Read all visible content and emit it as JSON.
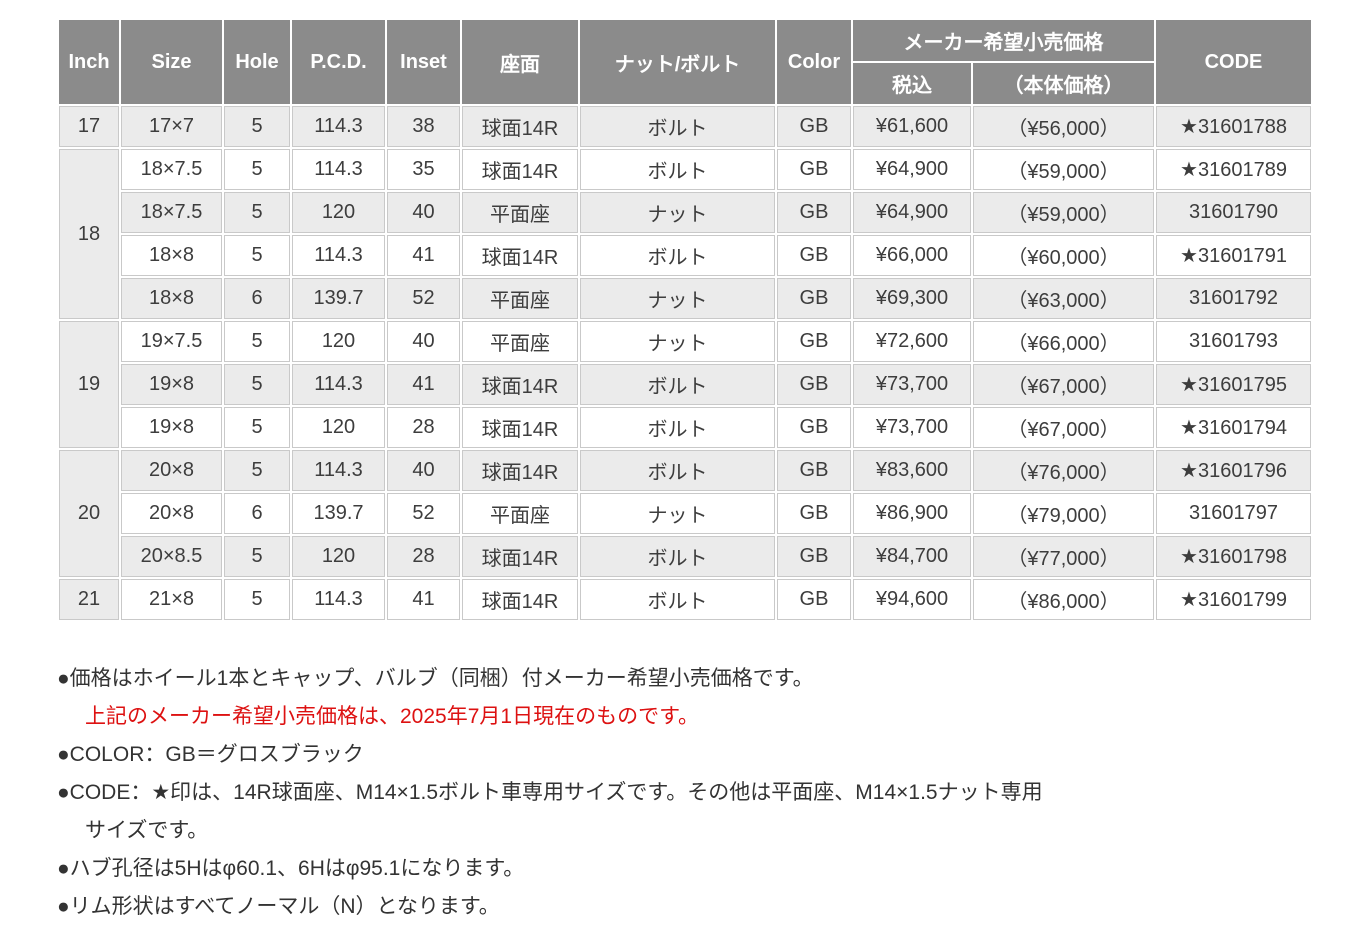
{
  "colors": {
    "header_bg": "#8b8b8b",
    "header_text": "#ffffff",
    "stripe_gray": "#ebebeb",
    "inch_column_bg": "#ebebeb",
    "cell_border": "#c9c9c9",
    "body_text": "#3d3d3d",
    "note_red": "#dd1111"
  },
  "table": {
    "headers": {
      "inch": "Inch",
      "size": "Size",
      "hole": "Hole",
      "pcd": "P.C.D.",
      "inset": "Inset",
      "seat": "座面",
      "nut_bolt": "ナット/ボルト",
      "color": "Color",
      "price_group": "メーカー希望小売価格",
      "price_tax": "税込",
      "price_base": "（本体価格）",
      "code": "CODE"
    },
    "groups": [
      {
        "inch": "17",
        "rows": [
          {
            "size": "17×7",
            "hole": "5",
            "pcd": "114.3",
            "inset": "38",
            "seat": "球面14R",
            "nut_bolt": "ボルト",
            "color": "GB",
            "price_tax": "¥61,600",
            "price_base": "（¥56,000）",
            "code": "★31601788"
          }
        ]
      },
      {
        "inch": "18",
        "rows": [
          {
            "size": "18×7.5",
            "hole": "5",
            "pcd": "114.3",
            "inset": "35",
            "seat": "球面14R",
            "nut_bolt": "ボルト",
            "color": "GB",
            "price_tax": "¥64,900",
            "price_base": "（¥59,000）",
            "code": "★31601789"
          },
          {
            "size": "18×7.5",
            "hole": "5",
            "pcd": "120",
            "inset": "40",
            "seat": "平面座",
            "nut_bolt": "ナット",
            "color": "GB",
            "price_tax": "¥64,900",
            "price_base": "（¥59,000）",
            "code": "31601790"
          },
          {
            "size": "18×8",
            "hole": "5",
            "pcd": "114.3",
            "inset": "41",
            "seat": "球面14R",
            "nut_bolt": "ボルト",
            "color": "GB",
            "price_tax": "¥66,000",
            "price_base": "（¥60,000）",
            "code": "★31601791"
          },
          {
            "size": "18×8",
            "hole": "6",
            "pcd": "139.7",
            "inset": "52",
            "seat": "平面座",
            "nut_bolt": "ナット",
            "color": "GB",
            "price_tax": "¥69,300",
            "price_base": "（¥63,000）",
            "code": "31601792"
          }
        ]
      },
      {
        "inch": "19",
        "rows": [
          {
            "size": "19×7.5",
            "hole": "5",
            "pcd": "120",
            "inset": "40",
            "seat": "平面座",
            "nut_bolt": "ナット",
            "color": "GB",
            "price_tax": "¥72,600",
            "price_base": "（¥66,000）",
            "code": "31601793"
          },
          {
            "size": "19×8",
            "hole": "5",
            "pcd": "114.3",
            "inset": "41",
            "seat": "球面14R",
            "nut_bolt": "ボルト",
            "color": "GB",
            "price_tax": "¥73,700",
            "price_base": "（¥67,000）",
            "code": "★31601795"
          },
          {
            "size": "19×8",
            "hole": "5",
            "pcd": "120",
            "inset": "28",
            "seat": "球面14R",
            "nut_bolt": "ボルト",
            "color": "GB",
            "price_tax": "¥73,700",
            "price_base": "（¥67,000）",
            "code": "★31601794"
          }
        ]
      },
      {
        "inch": "20",
        "rows": [
          {
            "size": "20×8",
            "hole": "5",
            "pcd": "114.3",
            "inset": "40",
            "seat": "球面14R",
            "nut_bolt": "ボルト",
            "color": "GB",
            "price_tax": "¥83,600",
            "price_base": "（¥76,000）",
            "code": "★31601796"
          },
          {
            "size": "20×8",
            "hole": "6",
            "pcd": "139.7",
            "inset": "52",
            "seat": "平面座",
            "nut_bolt": "ナット",
            "color": "GB",
            "price_tax": "¥86,900",
            "price_base": "（¥79,000）",
            "code": "31601797"
          },
          {
            "size": "20×8.5",
            "hole": "5",
            "pcd": "120",
            "inset": "28",
            "seat": "球面14R",
            "nut_bolt": "ボルト",
            "color": "GB",
            "price_tax": "¥84,700",
            "price_base": "（¥77,000）",
            "code": "★31601798"
          }
        ]
      },
      {
        "inch": "21",
        "rows": [
          {
            "size": "21×8",
            "hole": "5",
            "pcd": "114.3",
            "inset": "41",
            "seat": "球面14R",
            "nut_bolt": "ボルト",
            "color": "GB",
            "price_tax": "¥94,600",
            "price_base": "（¥86,000）",
            "code": "★31601799"
          }
        ]
      }
    ]
  },
  "notes": [
    {
      "text": "●価格はホイール1本とキャップ、バルブ（同梱）付メーカー希望小売価格です。",
      "color": "default",
      "indent": 0
    },
    {
      "text": "上記のメーカー希望小売価格は、2025年7月1日現在のものです。",
      "color": "red",
      "indent": 1
    },
    {
      "text": "●COLOR：GB＝グロスブラック",
      "color": "default",
      "indent": 0
    },
    {
      "text": "●CODE：★印は、14R球面座、M14×1.5ボルト車専用サイズです。その他は平面座、M14×1.5ナット専用",
      "color": "default",
      "indent": 0
    },
    {
      "text": "サイズです。",
      "color": "default",
      "indent": 1
    },
    {
      "text": "●ハブ孔径は5Hはφ60.1、6Hはφ95.1になります。",
      "color": "default",
      "indent": 0
    },
    {
      "text": "●リム形状はすべてノーマル（N）となります。",
      "color": "default",
      "indent": 0
    }
  ]
}
